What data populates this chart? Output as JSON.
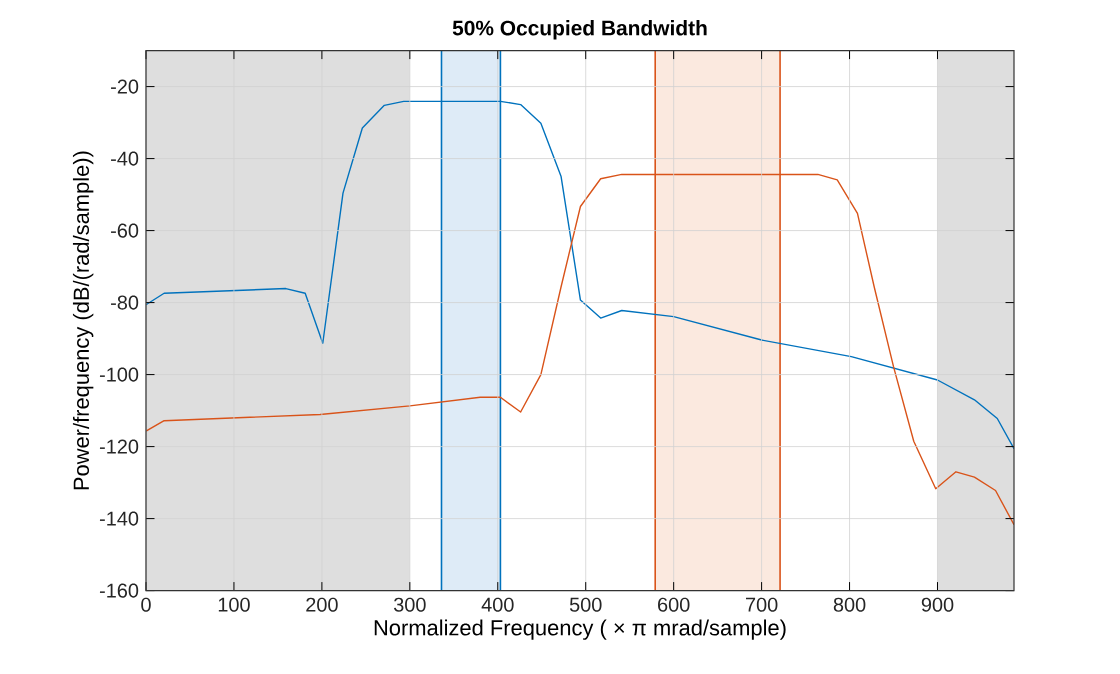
{
  "chart_data": {
    "type": "line",
    "title": "50% Occupied Bandwidth",
    "xlabel": "Normalized  Frequency    ( × π  mrad/sample)",
    "ylabel": "Power/frequency (dB/(rad/sample))",
    "xlim": [
      0,
      987
    ],
    "ylim": [
      -160,
      -10
    ],
    "xticks": [
      0,
      100,
      200,
      300,
      400,
      500,
      600,
      700,
      800,
      900
    ],
    "yticks": [
      -160,
      -140,
      -120,
      -100,
      -80,
      -60,
      -40,
      -20
    ],
    "grid": true,
    "series": [
      {
        "color": "#0072bd",
        "x": [
          0,
          20.6,
          159,
          181,
          201,
          224,
          246,
          271,
          293,
          403,
          426,
          449,
          472,
          494,
          517,
          541,
          600,
          700,
          802,
          900,
          942,
          968,
          987
        ],
        "values": [
          -80.6,
          -77.4,
          -76.1,
          -77.4,
          -91.3,
          -49.6,
          -31.5,
          -25.2,
          -24.1,
          -24.1,
          -25,
          -30.2,
          -45,
          -79.3,
          -84.3,
          -82.2,
          -83.9,
          -90.4,
          -95,
          -101.5,
          -107,
          -112.2,
          -120.6
        ]
      },
      {
        "color": "#d95319",
        "x": [
          0,
          20.6,
          198,
          300,
          380,
          403,
          426,
          449,
          472,
          494,
          517,
          541,
          764,
          786,
          809,
          828,
          850,
          873,
          898,
          921,
          942,
          966,
          987
        ],
        "values": [
          -115.7,
          -112.8,
          -111.1,
          -108.7,
          -106.3,
          -106.3,
          -110.4,
          -100,
          -75.6,
          -53.3,
          -45.6,
          -44.4,
          -44.4,
          -45.9,
          -55.2,
          -75.6,
          -97.8,
          -118.5,
          -131.7,
          -127,
          -128.5,
          -132.2,
          -141.7
        ]
      }
    ],
    "bands": [
      {
        "axis": "x",
        "from": 0,
        "to": 300,
        "color": "#dedede"
      },
      {
        "axis": "x",
        "from": 900,
        "to": 987,
        "color": "#dedede"
      },
      {
        "axis": "x",
        "from": 336,
        "to": 403,
        "color": "#deebf7"
      },
      {
        "axis": "x",
        "from": 579,
        "to": 721,
        "color": "#fbe9df"
      }
    ],
    "ref_lines": [
      {
        "axis": "x",
        "value": 336,
        "color": "#0072bd"
      },
      {
        "axis": "x",
        "value": 403,
        "color": "#0072bd"
      },
      {
        "axis": "x",
        "value": 579,
        "color": "#d95319"
      },
      {
        "axis": "x",
        "value": 721,
        "color": "#d95319"
      }
    ]
  }
}
